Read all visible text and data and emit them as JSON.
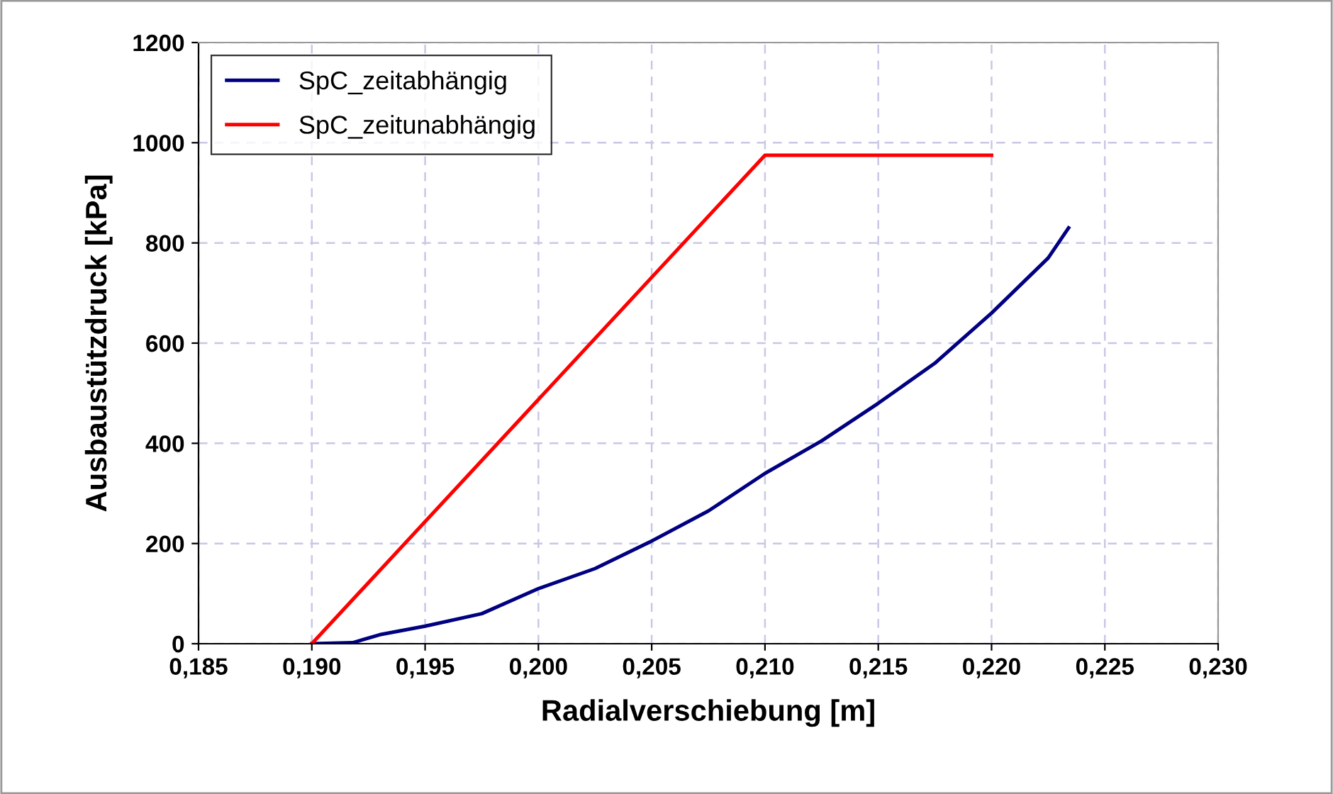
{
  "chart_data": {
    "type": "line",
    "xlabel": "Radialverschiebung [m]",
    "ylabel": "Ausbaustützdruck [kPa]",
    "xlim": [
      0.185,
      0.23
    ],
    "xticks": [
      {
        "value": 0.185,
        "label": "0,185"
      },
      {
        "value": 0.19,
        "label": "0,190"
      },
      {
        "value": 0.195,
        "label": "0,195"
      },
      {
        "value": 0.2,
        "label": "0,200"
      },
      {
        "value": 0.205,
        "label": "0,205"
      },
      {
        "value": 0.21,
        "label": "0,210"
      },
      {
        "value": 0.215,
        "label": "0,215"
      },
      {
        "value": 0.22,
        "label": "0,220"
      },
      {
        "value": 0.225,
        "label": "0,225"
      },
      {
        "value": 0.23,
        "label": "0,230"
      }
    ],
    "ylim": [
      0,
      1200
    ],
    "yticks": [
      0,
      200,
      400,
      600,
      800,
      1000,
      1200
    ],
    "grid": true,
    "legend": "top left",
    "line_style": "solid",
    "marker": "none",
    "series": [
      {
        "name": "SpC_zeitabhängig",
        "color": "#000080",
        "x": [
          0.19,
          0.1918,
          0.193,
          0.195,
          0.1975,
          0.2,
          0.2025,
          0.205,
          0.2075,
          0.21,
          0.2125,
          0.215,
          0.2175,
          0.22,
          0.2225,
          0.2234
        ],
        "values": [
          0,
          2,
          18,
          35,
          60,
          110,
          150,
          205,
          265,
          340,
          405,
          480,
          560,
          660,
          770,
          830
        ]
      },
      {
        "name": "SpC_zeitunabhängig",
        "color": "#ff0000",
        "x": [
          0.19,
          0.21,
          0.22
        ],
        "values": [
          0,
          975,
          975
        ]
      }
    ]
  }
}
